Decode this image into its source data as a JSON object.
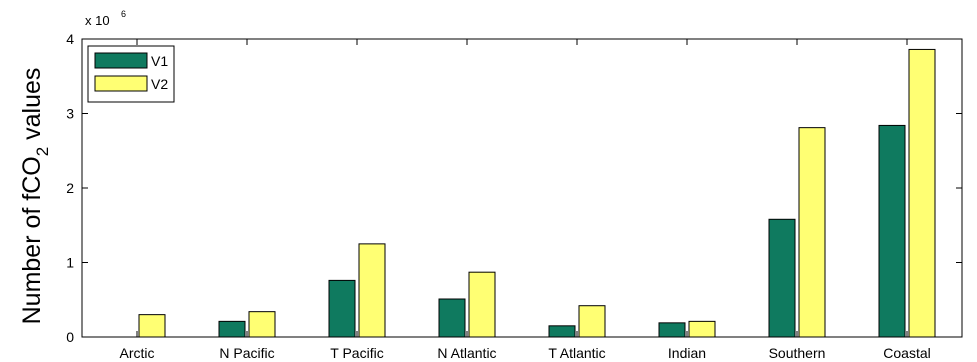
{
  "chart_data": {
    "type": "bar",
    "ylabel_main": "Number of fCO",
    "ylabel_sub": "2",
    "ylabel_tail": " values",
    "exponent_base": "x 10",
    "exponent_power": "6",
    "ylim": [
      0,
      4
    ],
    "yticks": [
      "0",
      "1",
      "2",
      "3",
      "4"
    ],
    "categories": [
      "Arctic",
      "N Pacific",
      "T Pacific",
      "N Atlantic",
      "T Atlantic",
      "Indian",
      "Southern",
      "Coastal"
    ],
    "legend_position": "top-left",
    "grid": false,
    "series": [
      {
        "name": "V1",
        "color": "#0f7a5f",
        "values": [
          0.0,
          0.21,
          0.76,
          0.51,
          0.15,
          0.19,
          1.58,
          2.84
        ]
      },
      {
        "name": "V2",
        "color": "#ffff73",
        "values": [
          0.3,
          0.34,
          1.25,
          0.87,
          0.42,
          0.21,
          2.81,
          3.86
        ]
      }
    ]
  }
}
